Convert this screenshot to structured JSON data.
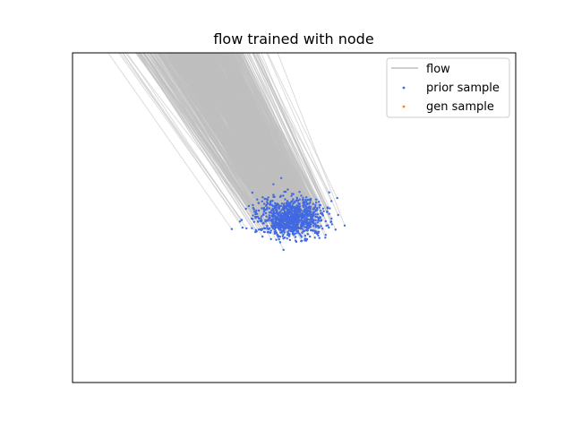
{
  "chart_data": {
    "type": "scatter",
    "title": "flow trained with node",
    "xlabel": "",
    "ylabel": "",
    "axis_ticks": "hidden",
    "grid": false,
    "legend_placement": "top-right",
    "legend": [
      {
        "name": "flow",
        "marker": "line",
        "color": "#c0c0c0"
      },
      {
        "name": "prior sample",
        "marker": "dot",
        "color": "#4169e1"
      },
      {
        "name": "gen sample",
        "marker": "dot",
        "color": "#ff7f0e"
      }
    ],
    "series": [
      {
        "name": "prior sample",
        "color": "#4169e1",
        "distribution": "gaussian-cluster",
        "count": 1000,
        "center": [
          0.0,
          0.0
        ],
        "spread": [
          1.0,
          0.6
        ]
      },
      {
        "name": "flow",
        "color": "#c0c0c0",
        "kind": "trajectory-lines",
        "direction": "up-left, exiting top edge"
      },
      {
        "name": "gen sample",
        "color": "#ff7f0e",
        "visible_in_plot": false
      }
    ]
  }
}
